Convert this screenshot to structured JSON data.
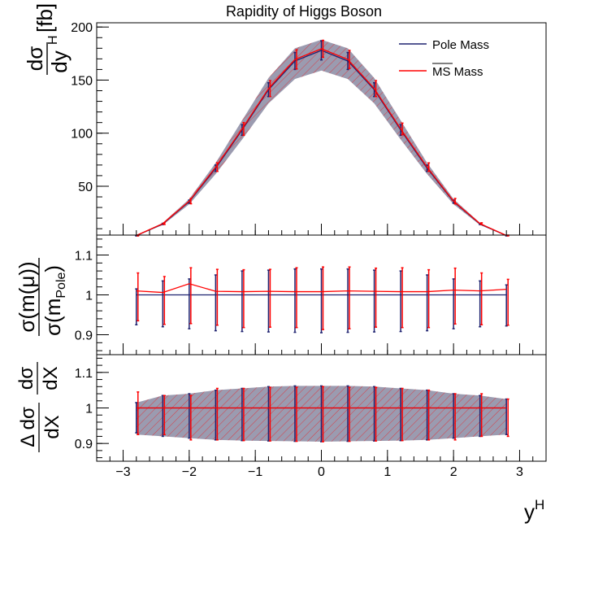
{
  "chart_data": {
    "type": "line",
    "title": "Rapidity of Higgs Boson",
    "xlabel": "y",
    "xlabel_sup": "H",
    "xlim": [
      -3.4,
      3.4
    ],
    "x_ticks": [
      -3,
      -2,
      -1,
      0,
      1,
      2,
      3
    ],
    "x_tick_labels": [
      "−3",
      "−2",
      "−1",
      "0",
      "1",
      "2",
      "3"
    ],
    "x": [
      -2.8,
      -2.4,
      -2.0,
      -1.6,
      -1.2,
      -0.8,
      -0.4,
      0.0,
      0.4,
      0.8,
      1.2,
      1.6,
      2.0,
      2.4,
      2.8
    ],
    "legend": {
      "position": "top-right",
      "entries": [
        {
          "label": "Pole Mass",
          "color": "#1f2370"
        },
        {
          "label": "MS Mass",
          "overline": "MS",
          "suffix": " Mass",
          "color": "#ff0000"
        }
      ]
    },
    "panels": [
      {
        "name": "main",
        "ylabel_num": "dσ",
        "ylabel_den": "dy",
        "ylabel_den_sup": "H",
        "ylabel_unit": "[fb]",
        "ylim": [
          4,
          204
        ],
        "y_ticks": [
          50,
          100,
          150,
          200
        ],
        "y_tick_labels": [
          "50",
          "100",
          "150",
          "200"
        ],
        "series": [
          {
            "name": "Pole Mass",
            "color": "#1f2370",
            "values": [
              3.5,
              14.5,
              35.5,
              67,
              103,
              141,
              168,
              178,
              168,
              141,
              103,
              67,
              35.5,
              14.5,
              3.5
            ],
            "err": [
              0.3,
              0.6,
              1.5,
              3,
              5,
              6.5,
              8,
              9,
              8,
              6.5,
              5,
              3,
              1.5,
              0.6,
              0.3
            ]
          },
          {
            "name": "MS Mass",
            "color": "#ff0000",
            "values": [
              3.6,
              14.8,
              36,
              68,
              104,
              142,
              169.5,
              179.5,
              169.5,
              142,
              104,
              68,
              36,
              14.8,
              3.6
            ],
            "err": [
              0.4,
              0.8,
              2.5,
              4,
              6,
              7.5,
              9,
              8,
              8.5,
              7.5,
              5.5,
              4,
              2.5,
              0.8,
              0.4
            ]
          }
        ],
        "band": {
          "lower": [
            3.3,
            13.5,
            33.0,
            61.5,
            94.0,
            128.0,
            151.0,
            159.0,
            151.0,
            128.0,
            94.0,
            61.5,
            33.0,
            13.5,
            3.3
          ],
          "upper": [
            3.8,
            15.5,
            38.0,
            72.0,
            112.0,
            152.0,
            180.0,
            188.0,
            180.0,
            152.0,
            112.0,
            72.0,
            38.0,
            15.5,
            3.8
          ]
        }
      },
      {
        "name": "ratio",
        "ylabel_num": "σ(m(μ))",
        "ylabel_den": "σ(m",
        "ylabel_den_sub": "Pole",
        "ylabel_den_close": ")",
        "ylim": [
          0.85,
          1.15
        ],
        "y_ticks": [
          0.9,
          1.0,
          1.1
        ],
        "y_tick_labels": [
          "0.9",
          "1",
          "1.1"
        ],
        "series": [
          {
            "name": "Pole Mass",
            "color": "#1f2370",
            "values": [
              1,
              1,
              1,
              1,
              1,
              1,
              1,
              1,
              1,
              1,
              1,
              1,
              1,
              1,
              1
            ],
            "err_lo": [
              0.075,
              0.08,
              0.085,
              0.09,
              0.092,
              0.093,
              0.094,
              0.095,
              0.094,
              0.093,
              0.092,
              0.09,
              0.085,
              0.08,
              0.078
            ],
            "err_hi": [
              0.015,
              0.035,
              0.04,
              0.05,
              0.06,
              0.062,
              0.065,
              0.065,
              0.065,
              0.062,
              0.06,
              0.05,
              0.04,
              0.035,
              0.025
            ]
          },
          {
            "name": "MS Mass",
            "color": "#ff0000",
            "values": [
              1.01,
              1.006,
              1.028,
              1.009,
              1.008,
              1.009,
              1.008,
              1.008,
              1.01,
              1.009,
              1.008,
              1.008,
              1.012,
              1.01,
              1.014
            ],
            "err_lo": [
              0.075,
              0.08,
              0.1,
              0.085,
              0.09,
              0.09,
              0.09,
              0.095,
              0.095,
              0.09,
              0.09,
              0.09,
              0.085,
              0.085,
              0.09
            ],
            "err_hi": [
              0.045,
              0.04,
              0.04,
              0.055,
              0.055,
              0.055,
              0.06,
              0.062,
              0.06,
              0.058,
              0.06,
              0.055,
              0.055,
              0.045,
              0.025
            ]
          }
        ]
      },
      {
        "name": "uncertainty",
        "ylabel_num": "Δ dσ",
        "ylabel_den": "dX",
        "ylabel_right_num": "dσ",
        "ylabel_right_den": "dX",
        "ylim": [
          0.85,
          1.15
        ],
        "y_ticks": [
          0.9,
          1.0,
          1.1
        ],
        "y_tick_labels": [
          "0.9",
          "1",
          "1.1"
        ],
        "series": [
          {
            "name": "Pole Mass",
            "color": "#1f2370",
            "values": [
              1,
              1,
              1,
              1,
              1,
              1,
              1,
              1,
              1,
              1,
              1,
              1,
              1,
              1,
              1
            ],
            "err_lo": [
              0.07,
              0.08,
              0.085,
              0.09,
              0.092,
              0.093,
              0.094,
              0.095,
              0.094,
              0.093,
              0.092,
              0.09,
              0.085,
              0.08,
              0.075
            ],
            "err_hi": [
              0.015,
              0.035,
              0.04,
              0.05,
              0.055,
              0.06,
              0.062,
              0.062,
              0.062,
              0.06,
              0.055,
              0.05,
              0.04,
              0.035,
              0.025
            ]
          },
          {
            "name": "MS Mass",
            "color": "#ff0000",
            "values": [
              1,
              1,
              1,
              1,
              1,
              1,
              1,
              1,
              1,
              1,
              1,
              1,
              1,
              1,
              1
            ],
            "err_lo": [
              0.075,
              0.075,
              0.09,
              0.09,
              0.092,
              0.093,
              0.094,
              0.095,
              0.094,
              0.093,
              0.092,
              0.09,
              0.09,
              0.08,
              0.08
            ],
            "err_hi": [
              0.045,
              0.035,
              0.035,
              0.055,
              0.055,
              0.058,
              0.058,
              0.06,
              0.058,
              0.058,
              0.055,
              0.05,
              0.04,
              0.04,
              0.025
            ]
          }
        ],
        "band": {
          "lower": [
            0.925,
            0.92,
            0.915,
            0.91,
            0.908,
            0.907,
            0.906,
            0.905,
            0.906,
            0.907,
            0.908,
            0.91,
            0.915,
            0.92,
            0.925
          ],
          "upper": [
            1.015,
            1.035,
            1.04,
            1.05,
            1.055,
            1.06,
            1.062,
            1.062,
            1.062,
            1.06,
            1.055,
            1.05,
            1.04,
            1.035,
            1.025
          ]
        }
      }
    ],
    "grid": false,
    "colors": {
      "band_fill": "#9b9bb0",
      "hatch": "#ff0000",
      "pole": "#1f2370",
      "ms": "#ff0000"
    }
  }
}
